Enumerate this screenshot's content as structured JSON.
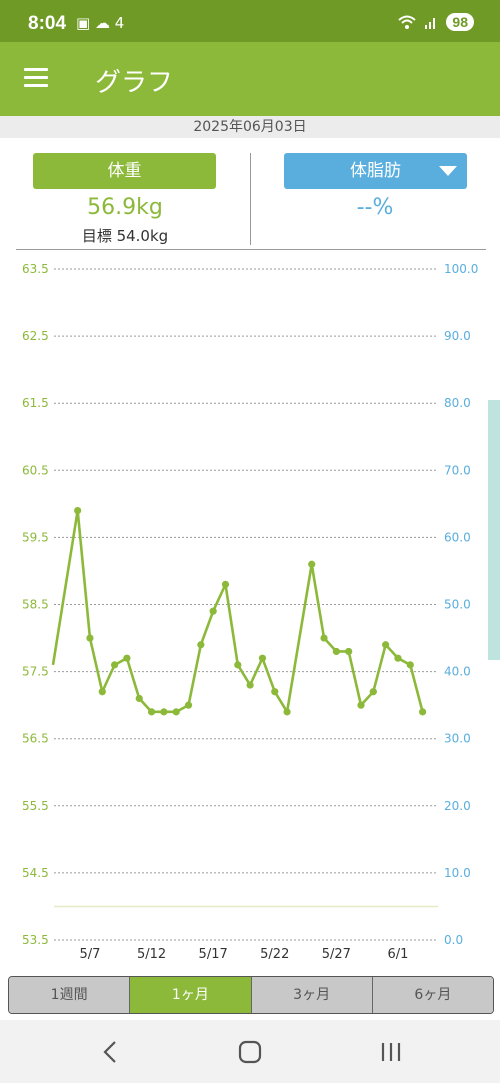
{
  "status": {
    "time": "8:04",
    "battery": "98",
    "notif_icons": "▣ ☁ 4"
  },
  "app": {
    "title": "グラフ"
  },
  "date": "2025年06月03日",
  "weight": {
    "label": "体重",
    "value": "56.9kg",
    "target": "目標 54.0kg"
  },
  "body_fat": {
    "label": "体脂肪",
    "value": "--%"
  },
  "periods": [
    {
      "label": "1週間",
      "active": false
    },
    {
      "label": "1ヶ月",
      "active": true
    },
    {
      "label": "3ヶ月",
      "active": false
    },
    {
      "label": "6ヶ月",
      "active": false
    }
  ],
  "colors": {
    "weight": "#8cb93a",
    "fat": "#5aaede"
  },
  "chart_data": {
    "type": "line",
    "title": "",
    "xlabel": "",
    "ylabel": "",
    "x_ticks": [
      "5/7",
      "5/12",
      "5/17",
      "5/22",
      "5/27",
      "6/1"
    ],
    "y_left": {
      "ticks": [
        "63.5",
        "62.5",
        "61.5",
        "60.5",
        "59.5",
        "58.5",
        "57.5",
        "56.5",
        "55.5",
        "54.5",
        "53.5"
      ],
      "range": [
        53.5,
        63.5
      ]
    },
    "y_right": {
      "ticks": [
        "100.0",
        "90.0",
        "80.0",
        "70.0",
        "60.0",
        "50.0",
        "40.0",
        "30.0",
        "20.0",
        "10.0",
        "0.0"
      ],
      "range": [
        0,
        100
      ]
    },
    "target_line": 54.0,
    "grid": true,
    "series": [
      {
        "x": [
          "5/4",
          "5/5",
          "5/6",
          "5/7",
          "5/8",
          "5/9",
          "5/10",
          "5/11",
          "5/12",
          "5/13",
          "5/14",
          "5/15",
          "5/16",
          "5/17",
          "5/18",
          "5/19",
          "5/20",
          "5/21",
          "5/22",
          "5/23",
          "5/24",
          "5/25",
          "5/26",
          "5/27",
          "5/28",
          "5/29",
          "5/30",
          "5/31",
          "6/1",
          "6/2",
          "6/3"
        ],
        "values": [
          57.6,
          null,
          59.9,
          58.0,
          57.2,
          57.6,
          57.7,
          57.1,
          56.9,
          56.9,
          56.9,
          57.0,
          57.9,
          58.4,
          58.8,
          57.6,
          57.3,
          57.7,
          57.2,
          56.9,
          null,
          59.1,
          58.0,
          57.8,
          57.8,
          57.0,
          57.2,
          57.9,
          57.7,
          57.6,
          56.9
        ]
      }
    ]
  }
}
